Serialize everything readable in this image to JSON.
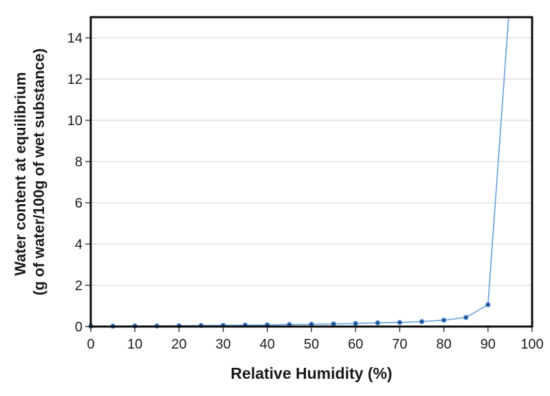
{
  "figure": {
    "background_color": "#ffffff",
    "title": ""
  },
  "chart_data": {
    "type": "line",
    "title": "",
    "xlabel": "Relative Humidity (%)",
    "ylabel_line1": "Water content at equilibrium",
    "ylabel_line2": "(g of water/100g of wet substance)",
    "x": [
      0,
      5,
      10,
      15,
      20,
      25,
      30,
      35,
      40,
      45,
      50,
      55,
      60,
      65,
      70,
      75,
      80,
      85,
      90,
      95
    ],
    "y": [
      0.02,
      0.02,
      0.03,
      0.03,
      0.04,
      0.05,
      0.06,
      0.07,
      0.08,
      0.1,
      0.11,
      0.13,
      0.15,
      0.18,
      0.2,
      0.24,
      0.31,
      0.44,
      1.06,
      16
    ],
    "xlim": [
      0,
      100
    ],
    "ylim": [
      0,
      15
    ],
    "x_ticks": [
      0,
      10,
      20,
      30,
      40,
      50,
      60,
      70,
      80,
      90,
      100
    ],
    "y_ticks": [
      0,
      2,
      4,
      6,
      8,
      10,
      12,
      14
    ],
    "grid": "horizontal-only",
    "legend": "none",
    "note": "Last point (RH 95, ~16) lies above the y-axis maximum; the connecting line exits through the top plot border near RH 94-95 and is clipped.",
    "colors": {
      "line": "#6CA3DB",
      "marker_fill": "#3578C2",
      "marker_core": "#16365C",
      "gridline": "#D9D9D9",
      "plot_border": "#0d0d0d",
      "tick": "#333333",
      "text": "#1a1a1a",
      "background": "#ffffff"
    }
  }
}
